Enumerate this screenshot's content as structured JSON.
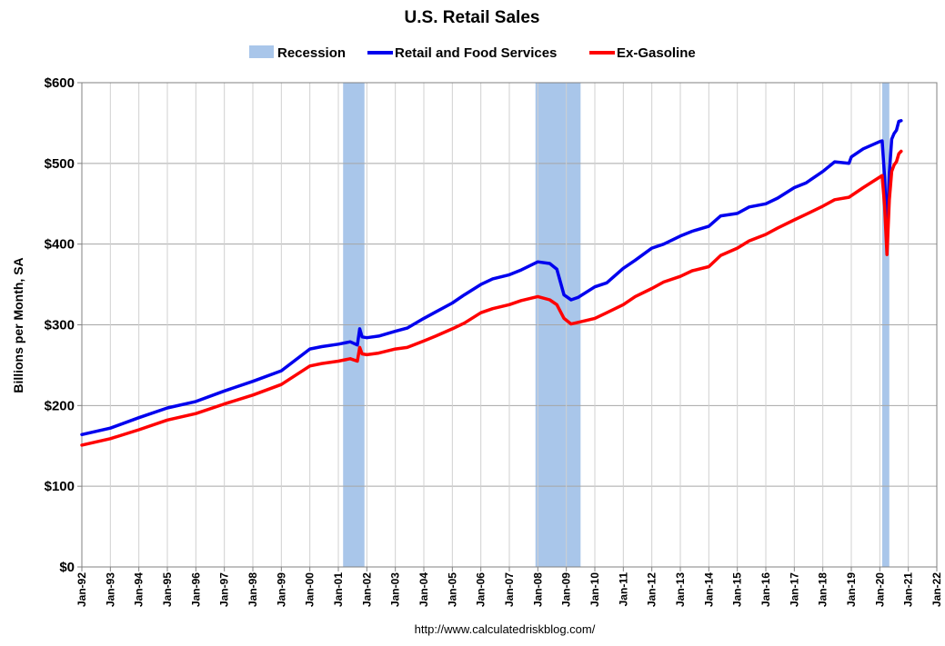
{
  "chart_data": {
    "type": "line",
    "title": "U.S. Retail Sales",
    "ylabel": "Billions per Month, SA",
    "xlabel": "",
    "source": "http://www.calculatedriskblog.com/",
    "ylim": [
      0,
      600
    ],
    "xlim": [
      "1992-01",
      "2022-01"
    ],
    "y_ticks": [
      "$0",
      "$100",
      "$200",
      "$300",
      "$400",
      "$500",
      "$600"
    ],
    "x_ticks": [
      "Jan-92",
      "Jan-93",
      "Jan-94",
      "Jan-95",
      "Jan-96",
      "Jan-97",
      "Jan-98",
      "Jan-99",
      "Jan-00",
      "Jan-01",
      "Jan-02",
      "Jan-03",
      "Jan-04",
      "Jan-05",
      "Jan-06",
      "Jan-07",
      "Jan-08",
      "Jan-09",
      "Jan-10",
      "Jan-11",
      "Jan-12",
      "Jan-13",
      "Jan-14",
      "Jan-15",
      "Jan-16",
      "Jan-17",
      "Jan-18",
      "Jan-19",
      "Jan-20",
      "Jan-21",
      "Jan-22"
    ],
    "grid": true,
    "legend_position": "top-center",
    "legend": [
      "Recession",
      "Retail and Food Services",
      "Ex-Gasoline"
    ],
    "recessions": [
      {
        "start": "2001-03",
        "end": "2001-11"
      },
      {
        "start": "2007-12",
        "end": "2009-06"
      },
      {
        "start": "2020-02",
        "end": "2020-04"
      }
    ],
    "series": [
      {
        "name": "Retail and Food Services",
        "color": "#0000ee",
        "points": [
          [
            "1992-01",
            164
          ],
          [
            "1993-01",
            172
          ],
          [
            "1994-01",
            185
          ],
          [
            "1995-01",
            197
          ],
          [
            "1996-01",
            205
          ],
          [
            "1997-01",
            218
          ],
          [
            "1998-01",
            230
          ],
          [
            "1999-01",
            243
          ],
          [
            "2000-01",
            270
          ],
          [
            "2000-06",
            273
          ],
          [
            "2001-01",
            276
          ],
          [
            "2001-06",
            279
          ],
          [
            "2001-09",
            275
          ],
          [
            "2001-10",
            295
          ],
          [
            "2001-11",
            285
          ],
          [
            "2002-01",
            284
          ],
          [
            "2002-06",
            286
          ],
          [
            "2003-01",
            292
          ],
          [
            "2003-06",
            296
          ],
          [
            "2004-01",
            308
          ],
          [
            "2004-06",
            316
          ],
          [
            "2005-01",
            327
          ],
          [
            "2005-06",
            337
          ],
          [
            "2006-01",
            350
          ],
          [
            "2006-06",
            357
          ],
          [
            "2007-01",
            362
          ],
          [
            "2007-06",
            368
          ],
          [
            "2008-01",
            378
          ],
          [
            "2008-06",
            376
          ],
          [
            "2008-09",
            369
          ],
          [
            "2008-12",
            337
          ],
          [
            "2009-03",
            331
          ],
          [
            "2009-06",
            334
          ],
          [
            "2010-01",
            347
          ],
          [
            "2010-06",
            352
          ],
          [
            "2011-01",
            370
          ],
          [
            "2011-06",
            380
          ],
          [
            "2012-01",
            395
          ],
          [
            "2012-06",
            400
          ],
          [
            "2013-01",
            410
          ],
          [
            "2013-06",
            416
          ],
          [
            "2014-01",
            422
          ],
          [
            "2014-06",
            435
          ],
          [
            "2015-01",
            438
          ],
          [
            "2015-06",
            446
          ],
          [
            "2016-01",
            450
          ],
          [
            "2016-06",
            457
          ],
          [
            "2017-01",
            470
          ],
          [
            "2017-06",
            476
          ],
          [
            "2018-01",
            490
          ],
          [
            "2018-06",
            502
          ],
          [
            "2018-12",
            500
          ],
          [
            "2019-01",
            508
          ],
          [
            "2019-06",
            518
          ],
          [
            "2020-01",
            527
          ],
          [
            "2020-02",
            528
          ],
          [
            "2020-03",
            483
          ],
          [
            "2020-04",
            410
          ],
          [
            "2020-05",
            488
          ],
          [
            "2020-06",
            530
          ],
          [
            "2020-07",
            537
          ],
          [
            "2020-08",
            541
          ],
          [
            "2020-09",
            552
          ],
          [
            "2020-10",
            553
          ]
        ]
      },
      {
        "name": "Ex-Gasoline",
        "color": "#ff0000",
        "points": [
          [
            "1992-01",
            151
          ],
          [
            "1993-01",
            159
          ],
          [
            "1994-01",
            170
          ],
          [
            "1995-01",
            182
          ],
          [
            "1996-01",
            190
          ],
          [
            "1997-01",
            202
          ],
          [
            "1998-01",
            213
          ],
          [
            "1999-01",
            226
          ],
          [
            "2000-01",
            249
          ],
          [
            "2000-06",
            252
          ],
          [
            "2001-01",
            255
          ],
          [
            "2001-06",
            258
          ],
          [
            "2001-09",
            255
          ],
          [
            "2001-10",
            272
          ],
          [
            "2001-11",
            264
          ],
          [
            "2002-01",
            263
          ],
          [
            "2002-06",
            265
          ],
          [
            "2003-01",
            270
          ],
          [
            "2003-06",
            272
          ],
          [
            "2004-01",
            280
          ],
          [
            "2004-06",
            286
          ],
          [
            "2005-01",
            295
          ],
          [
            "2005-06",
            302
          ],
          [
            "2006-01",
            315
          ],
          [
            "2006-06",
            320
          ],
          [
            "2007-01",
            325
          ],
          [
            "2007-06",
            330
          ],
          [
            "2008-01",
            335
          ],
          [
            "2008-06",
            331
          ],
          [
            "2008-09",
            325
          ],
          [
            "2008-12",
            308
          ],
          [
            "2009-03",
            301
          ],
          [
            "2009-06",
            303
          ],
          [
            "2010-01",
            308
          ],
          [
            "2010-06",
            315
          ],
          [
            "2011-01",
            325
          ],
          [
            "2011-06",
            335
          ],
          [
            "2012-01",
            345
          ],
          [
            "2012-06",
            353
          ],
          [
            "2013-01",
            360
          ],
          [
            "2013-06",
            367
          ],
          [
            "2014-01",
            372
          ],
          [
            "2014-06",
            386
          ],
          [
            "2015-01",
            395
          ],
          [
            "2015-06",
            404
          ],
          [
            "2016-01",
            412
          ],
          [
            "2016-06",
            420
          ],
          [
            "2017-01",
            430
          ],
          [
            "2017-06",
            437
          ],
          [
            "2018-01",
            447
          ],
          [
            "2018-06",
            455
          ],
          [
            "2018-12",
            458
          ],
          [
            "2019-01",
            460
          ],
          [
            "2019-06",
            470
          ],
          [
            "2020-01",
            483
          ],
          [
            "2020-02",
            485
          ],
          [
            "2020-03",
            447
          ],
          [
            "2020-04",
            387
          ],
          [
            "2020-05",
            455
          ],
          [
            "2020-06",
            490
          ],
          [
            "2020-07",
            498
          ],
          [
            "2020-08",
            502
          ],
          [
            "2020-09",
            512
          ],
          [
            "2020-10",
            515
          ]
        ]
      }
    ]
  }
}
